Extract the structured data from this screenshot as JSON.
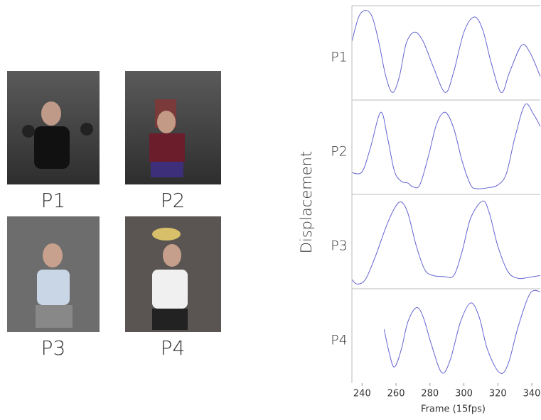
{
  "photos": [
    "P1",
    "P2",
    "P3",
    "P4"
  ],
  "chart_data": {
    "type": "line",
    "xlabel": "Frame (15fps)",
    "ylabel": "Displacement",
    "xlim": [
      234,
      345
    ],
    "xticks": [
      240,
      260,
      280,
      300,
      320,
      340
    ],
    "ylim": [
      0,
      1
    ],
    "series": [
      {
        "name": "P1",
        "color": "#6464d2",
        "x": [
          234,
          238,
          242,
          246,
          250,
          254,
          258,
          262,
          266,
          271,
          276,
          282,
          289,
          294,
          300,
          306,
          311,
          316,
          322,
          327,
          334,
          339,
          345
        ],
        "values": [
          0.62,
          0.88,
          0.95,
          0.88,
          0.6,
          0.25,
          0.08,
          0.25,
          0.6,
          0.72,
          0.62,
          0.35,
          0.08,
          0.3,
          0.72,
          0.88,
          0.75,
          0.4,
          0.08,
          0.3,
          0.58,
          0.5,
          0.25
        ]
      },
      {
        "name": "P2",
        "color": "#6464d2",
        "x": [
          234,
          240,
          245,
          251,
          255,
          259,
          263,
          267,
          270,
          274,
          279,
          284,
          289,
          294,
          299,
          304,
          308,
          314,
          320,
          325,
          330,
          336,
          341,
          345
        ],
        "values": [
          0.23,
          0.24,
          0.5,
          0.87,
          0.6,
          0.25,
          0.14,
          0.12,
          0.08,
          0.1,
          0.4,
          0.75,
          0.87,
          0.7,
          0.35,
          0.1,
          0.06,
          0.07,
          0.1,
          0.22,
          0.6,
          0.95,
          0.85,
          0.72
        ]
      },
      {
        "name": "P3",
        "color": "#6464d2",
        "x": [
          234,
          237,
          242,
          248,
          254,
          259,
          263,
          267,
          272,
          277,
          282,
          288,
          294,
          299,
          304,
          311,
          315,
          320,
          326,
          332,
          338,
          345
        ],
        "values": [
          0.1,
          0.05,
          0.1,
          0.35,
          0.65,
          0.85,
          0.92,
          0.8,
          0.45,
          0.2,
          0.14,
          0.13,
          0.14,
          0.4,
          0.75,
          0.93,
          0.8,
          0.45,
          0.18,
          0.11,
          0.12,
          0.14
        ]
      },
      {
        "name": "P4",
        "color": "#6464d2",
        "x": [
          253,
          256,
          259,
          263,
          267,
          272,
          276,
          281,
          287,
          292,
          298,
          304,
          309,
          314,
          321,
          326,
          332,
          339,
          345
        ],
        "values": [
          0.57,
          0.32,
          0.17,
          0.35,
          0.65,
          0.8,
          0.7,
          0.4,
          0.11,
          0.25,
          0.65,
          0.85,
          0.7,
          0.35,
          0.11,
          0.2,
          0.6,
          0.95,
          0.97
        ]
      }
    ]
  }
}
